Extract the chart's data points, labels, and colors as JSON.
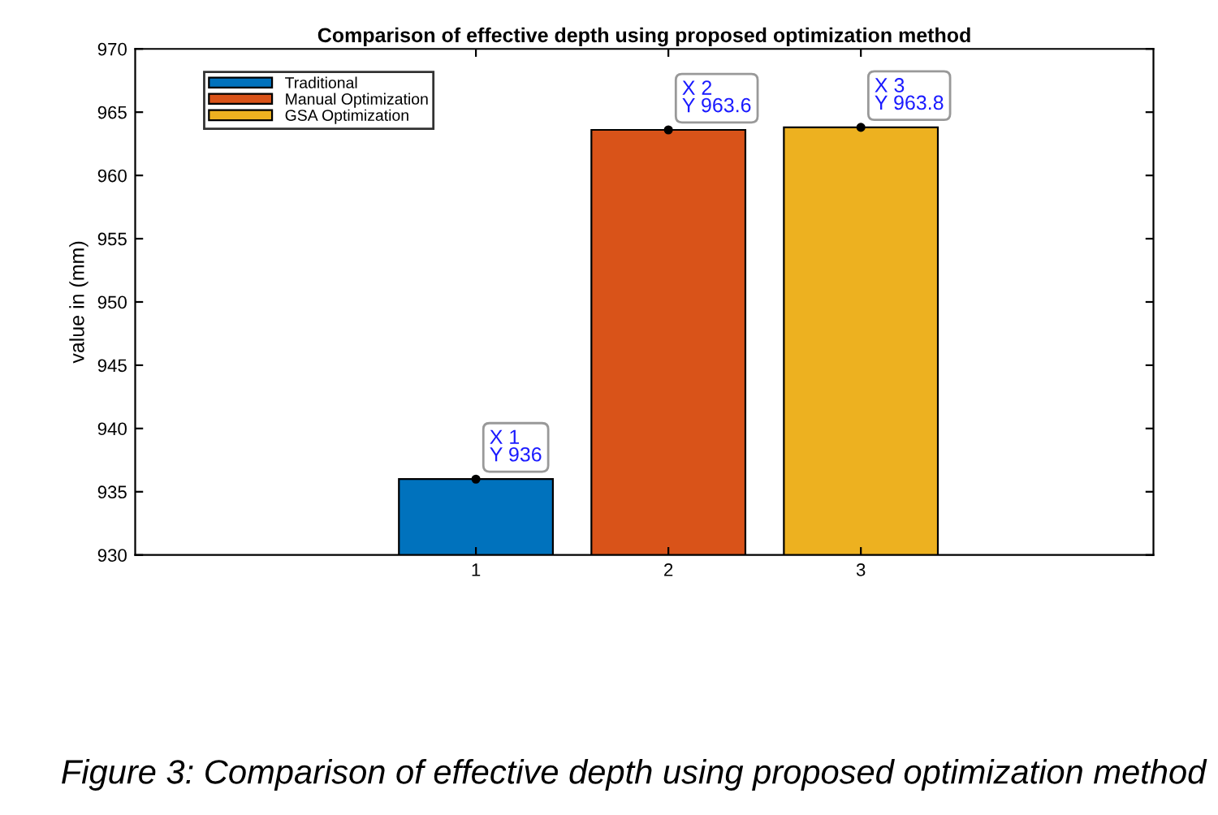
{
  "chart_data": {
    "type": "bar",
    "title": "Comparison of effective depth using proposed optimization method",
    "ylabel": "value in (mm)",
    "series": [
      {
        "name": "Traditional",
        "color": "#0072bd",
        "x": [
          1
        ],
        "values": [
          936
        ]
      },
      {
        "name": "Manual Optimization",
        "color": "#d95319",
        "x": [
          2
        ],
        "values": [
          963.6
        ]
      },
      {
        "name": "GSA Optimization",
        "color": "#edb120",
        "x": [
          3
        ],
        "values": [
          963.8
        ]
      }
    ],
    "xlim": [
      -0.77,
      4.52
    ],
    "xticks": [
      1,
      2,
      3
    ],
    "ylim": [
      930,
      970
    ],
    "yticks": [
      930,
      935,
      940,
      945,
      950,
      955,
      960,
      965,
      970
    ],
    "grid": false,
    "legend": "top left",
    "annotations": [
      {
        "text": "X 1\nY 936",
        "x": 1,
        "y": 936
      },
      {
        "text": "X 2\nY 963.6",
        "x": 2,
        "y": 963.6
      },
      {
        "text": "X 3\nY 963.8",
        "x": 3,
        "y": 963.8
      },
      "Figure 3: Comparison of effective depth using proposed optimization method"
    ]
  }
}
